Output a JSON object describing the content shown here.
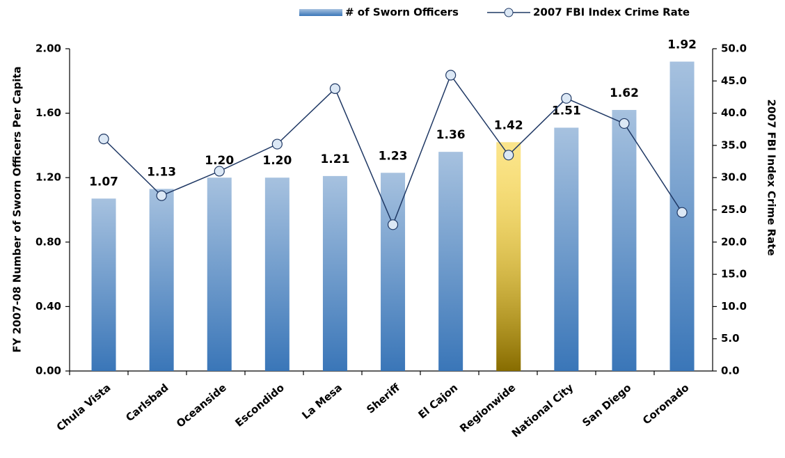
{
  "chart_data": {
    "type": "bar-line",
    "categories": [
      "Chula Vista",
      "Carlsbad",
      "Oceanside",
      "Escondido",
      "La Mesa",
      "Sheriff",
      "El Cajon",
      "Regionwide",
      "National City",
      "San Diego",
      "Coronado"
    ],
    "y_label": "FY 2007-08 Number of Sworn Officers Per Capita",
    "y2_label": "2007 FBI Index Crime Rate",
    "ylim": [
      0,
      2
    ],
    "yticks": [
      {
        "value": 0,
        "label": "0.00"
      },
      {
        "value": 0.4,
        "label": "0.40"
      },
      {
        "value": 0.8,
        "label": "0.80"
      },
      {
        "value": 1.2,
        "label": "1.20"
      },
      {
        "value": 1.6,
        "label": "1.60"
      },
      {
        "value": 2,
        "label": "2.00"
      }
    ],
    "y2lim": [
      0,
      50
    ],
    "y2ticks": [
      {
        "value": 0,
        "label": "0.0"
      },
      {
        "value": 5,
        "label": "5.0"
      },
      {
        "value": 10,
        "label": "10.0"
      },
      {
        "value": 15,
        "label": "15.0"
      },
      {
        "value": 20,
        "label": "20.0"
      },
      {
        "value": 25,
        "label": "25.0"
      },
      {
        "value": 30,
        "label": "30.0"
      },
      {
        "value": 35,
        "label": "35.0"
      },
      {
        "value": 40,
        "label": "40.0"
      },
      {
        "value": 45,
        "label": "45.0"
      },
      {
        "value": 50,
        "label": "50.0"
      }
    ],
    "legend": "top",
    "series": [
      {
        "name": "# of Sworn Officers",
        "type": "bar",
        "color": "#3a76b8",
        "bar_colors": [
          "#3a76b8",
          "#3a76b8",
          "#3a76b8",
          "#3a76b8",
          "#3a76b8",
          "#3a76b8",
          "#3a76b8",
          "#f5c400",
          "#3a76b8",
          "#3a76b8",
          "#3a76b8"
        ],
        "values": [
          1.07,
          1.13,
          1.2,
          1.2,
          1.21,
          1.23,
          1.36,
          1.42,
          1.51,
          1.62,
          1.92
        ],
        "value_labels": [
          "1.07",
          "1.13",
          "1.20",
          "1.20",
          "1.21",
          "1.23",
          "1.36",
          "1.42",
          "1.51",
          "1.62",
          "1.92"
        ]
      },
      {
        "name": "2007 FBI Index Crime Rate",
        "type": "line",
        "axis": "y2",
        "color": "#1f3864",
        "marker_fill": "#dce8f5",
        "values": [
          36.0,
          27.2,
          31.0,
          35.2,
          43.8,
          22.7,
          45.9,
          33.5,
          42.3,
          38.4,
          24.6
        ]
      }
    ]
  }
}
